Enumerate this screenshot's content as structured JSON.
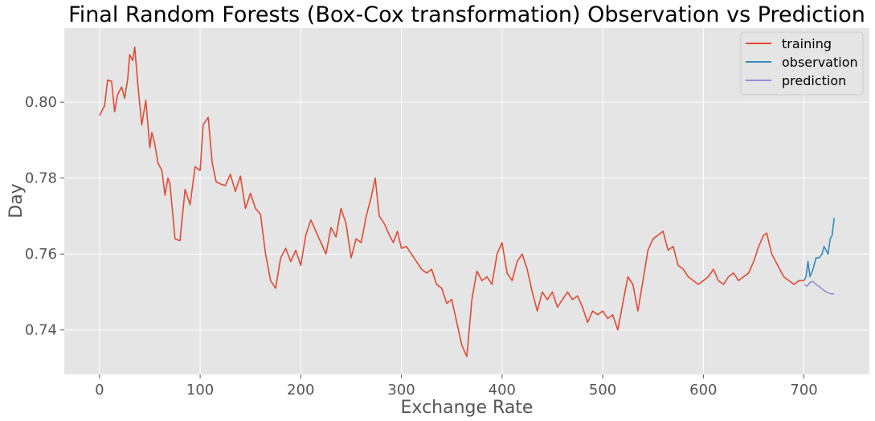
{
  "chart_data": {
    "type": "line",
    "title": "Final Random Forests (Box-Cox transformation) Observation vs Prediction",
    "xlabel": "Exchange Rate",
    "ylabel": "Day",
    "xlim": [
      -35,
      765
    ],
    "ylim": [
      0.7283,
      0.8195
    ],
    "x_ticks": [
      0,
      100,
      200,
      300,
      400,
      500,
      600,
      700
    ],
    "x_tick_labels": [
      "0",
      "100",
      "200",
      "300",
      "400",
      "500",
      "600",
      "700"
    ],
    "y_ticks": [
      0.74,
      0.76,
      0.78,
      0.8
    ],
    "y_tick_labels": [
      "0.74",
      "0.76",
      "0.78",
      "0.80"
    ],
    "grid": true,
    "legend_position": "top-right",
    "colors": {
      "training": "#E24A33",
      "observation": "#348ABD",
      "prediction": "#988ED5",
      "plot_background": "#E5E5E5",
      "grid": "#FFFFFF"
    },
    "series": [
      {
        "name": "training",
        "points": [
          [
            0,
            0.7965
          ],
          [
            5,
            0.799
          ],
          [
            8,
            0.8058
          ],
          [
            12,
            0.8055
          ],
          [
            15,
            0.7975
          ],
          [
            18,
            0.802
          ],
          [
            22,
            0.804
          ],
          [
            25,
            0.801
          ],
          [
            28,
            0.806
          ],
          [
            30,
            0.8125
          ],
          [
            33,
            0.811
          ],
          [
            35,
            0.8145
          ],
          [
            38,
            0.805
          ],
          [
            42,
            0.794
          ],
          [
            46,
            0.8005
          ],
          [
            50,
            0.788
          ],
          [
            52,
            0.792
          ],
          [
            55,
            0.789
          ],
          [
            58,
            0.784
          ],
          [
            62,
            0.782
          ],
          [
            65,
            0.7755
          ],
          [
            68,
            0.78
          ],
          [
            70,
            0.7785
          ],
          [
            75,
            0.764
          ],
          [
            80,
            0.7635
          ],
          [
            85,
            0.777
          ],
          [
            90,
            0.773
          ],
          [
            95,
            0.783
          ],
          [
            100,
            0.782
          ],
          [
            103,
            0.794
          ],
          [
            108,
            0.796
          ],
          [
            112,
            0.784
          ],
          [
            116,
            0.779
          ],
          [
            120,
            0.7785
          ],
          [
            125,
            0.778
          ],
          [
            130,
            0.781
          ],
          [
            135,
            0.7765
          ],
          [
            140,
            0.7805
          ],
          [
            145,
            0.772
          ],
          [
            150,
            0.776
          ],
          [
            155,
            0.772
          ],
          [
            160,
            0.7705
          ],
          [
            165,
            0.76
          ],
          [
            170,
            0.753
          ],
          [
            175,
            0.751
          ],
          [
            180,
            0.759
          ],
          [
            185,
            0.7615
          ],
          [
            190,
            0.758
          ],
          [
            195,
            0.761
          ],
          [
            200,
            0.757
          ],
          [
            205,
            0.765
          ],
          [
            210,
            0.769
          ],
          [
            215,
            0.766
          ],
          [
            220,
            0.763
          ],
          [
            225,
            0.76
          ],
          [
            230,
            0.767
          ],
          [
            235,
            0.7645
          ],
          [
            240,
            0.772
          ],
          [
            245,
            0.768
          ],
          [
            250,
            0.759
          ],
          [
            255,
            0.764
          ],
          [
            260,
            0.763
          ],
          [
            265,
            0.77
          ],
          [
            270,
            0.775
          ],
          [
            274,
            0.78
          ],
          [
            278,
            0.77
          ],
          [
            283,
            0.768
          ],
          [
            288,
            0.765
          ],
          [
            292,
            0.763
          ],
          [
            296,
            0.766
          ],
          [
            300,
            0.7615
          ],
          [
            305,
            0.762
          ],
          [
            310,
            0.76
          ],
          [
            315,
            0.758
          ],
          [
            320,
            0.756
          ],
          [
            325,
            0.755
          ],
          [
            330,
            0.756
          ],
          [
            335,
            0.752
          ],
          [
            340,
            0.751
          ],
          [
            345,
            0.747
          ],
          [
            350,
            0.748
          ],
          [
            355,
            0.742
          ],
          [
            360,
            0.736
          ],
          [
            365,
            0.733
          ],
          [
            370,
            0.748
          ],
          [
            375,
            0.7555
          ],
          [
            380,
            0.753
          ],
          [
            385,
            0.754
          ],
          [
            390,
            0.752
          ],
          [
            395,
            0.76
          ],
          [
            400,
            0.763
          ],
          [
            405,
            0.755
          ],
          [
            410,
            0.753
          ],
          [
            415,
            0.758
          ],
          [
            420,
            0.76
          ],
          [
            425,
            0.756
          ],
          [
            430,
            0.75
          ],
          [
            435,
            0.745
          ],
          [
            440,
            0.75
          ],
          [
            445,
            0.748
          ],
          [
            450,
            0.75
          ],
          [
            455,
            0.746
          ],
          [
            460,
            0.748
          ],
          [
            465,
            0.75
          ],
          [
            470,
            0.748
          ],
          [
            475,
            0.749
          ],
          [
            480,
            0.746
          ],
          [
            485,
            0.742
          ],
          [
            490,
            0.745
          ],
          [
            495,
            0.744
          ],
          [
            500,
            0.745
          ],
          [
            505,
            0.743
          ],
          [
            510,
            0.744
          ],
          [
            515,
            0.74
          ],
          [
            520,
            0.747
          ],
          [
            525,
            0.754
          ],
          [
            530,
            0.752
          ],
          [
            535,
            0.745
          ],
          [
            540,
            0.753
          ],
          [
            545,
            0.761
          ],
          [
            550,
            0.764
          ],
          [
            555,
            0.765
          ],
          [
            560,
            0.766
          ],
          [
            565,
            0.761
          ],
          [
            570,
            0.762
          ],
          [
            575,
            0.757
          ],
          [
            580,
            0.756
          ],
          [
            585,
            0.754
          ],
          [
            590,
            0.753
          ],
          [
            595,
            0.752
          ],
          [
            600,
            0.753
          ],
          [
            605,
            0.754
          ],
          [
            610,
            0.756
          ],
          [
            615,
            0.753
          ],
          [
            620,
            0.752
          ],
          [
            625,
            0.754
          ],
          [
            630,
            0.755
          ],
          [
            635,
            0.753
          ],
          [
            640,
            0.754
          ],
          [
            645,
            0.755
          ],
          [
            650,
            0.758
          ],
          [
            655,
            0.762
          ],
          [
            660,
            0.765
          ],
          [
            663,
            0.7655
          ],
          [
            668,
            0.76
          ],
          [
            672,
            0.758
          ],
          [
            676,
            0.756
          ],
          [
            680,
            0.754
          ],
          [
            685,
            0.753
          ],
          [
            690,
            0.752
          ],
          [
            695,
            0.753
          ],
          [
            700,
            0.753
          ]
        ]
      },
      {
        "name": "observation",
        "points": [
          [
            700,
            0.753
          ],
          [
            702,
            0.754
          ],
          [
            704,
            0.758
          ],
          [
            706,
            0.754
          ],
          [
            709,
            0.756
          ],
          [
            712,
            0.759
          ],
          [
            715,
            0.759
          ],
          [
            718,
            0.76
          ],
          [
            720,
            0.762
          ],
          [
            722,
            0.761
          ],
          [
            724,
            0.76
          ],
          [
            726,
            0.764
          ],
          [
            728,
            0.765
          ],
          [
            730,
            0.7695
          ]
        ]
      },
      {
        "name": "prediction",
        "points": [
          [
            700,
            0.752
          ],
          [
            703,
            0.7515
          ],
          [
            706,
            0.7525
          ],
          [
            709,
            0.7528
          ],
          [
            712,
            0.752
          ],
          [
            715,
            0.7515
          ],
          [
            718,
            0.7508
          ],
          [
            721,
            0.7502
          ],
          [
            724,
            0.7498
          ],
          [
            727,
            0.7495
          ],
          [
            730,
            0.7495
          ]
        ]
      }
    ]
  }
}
